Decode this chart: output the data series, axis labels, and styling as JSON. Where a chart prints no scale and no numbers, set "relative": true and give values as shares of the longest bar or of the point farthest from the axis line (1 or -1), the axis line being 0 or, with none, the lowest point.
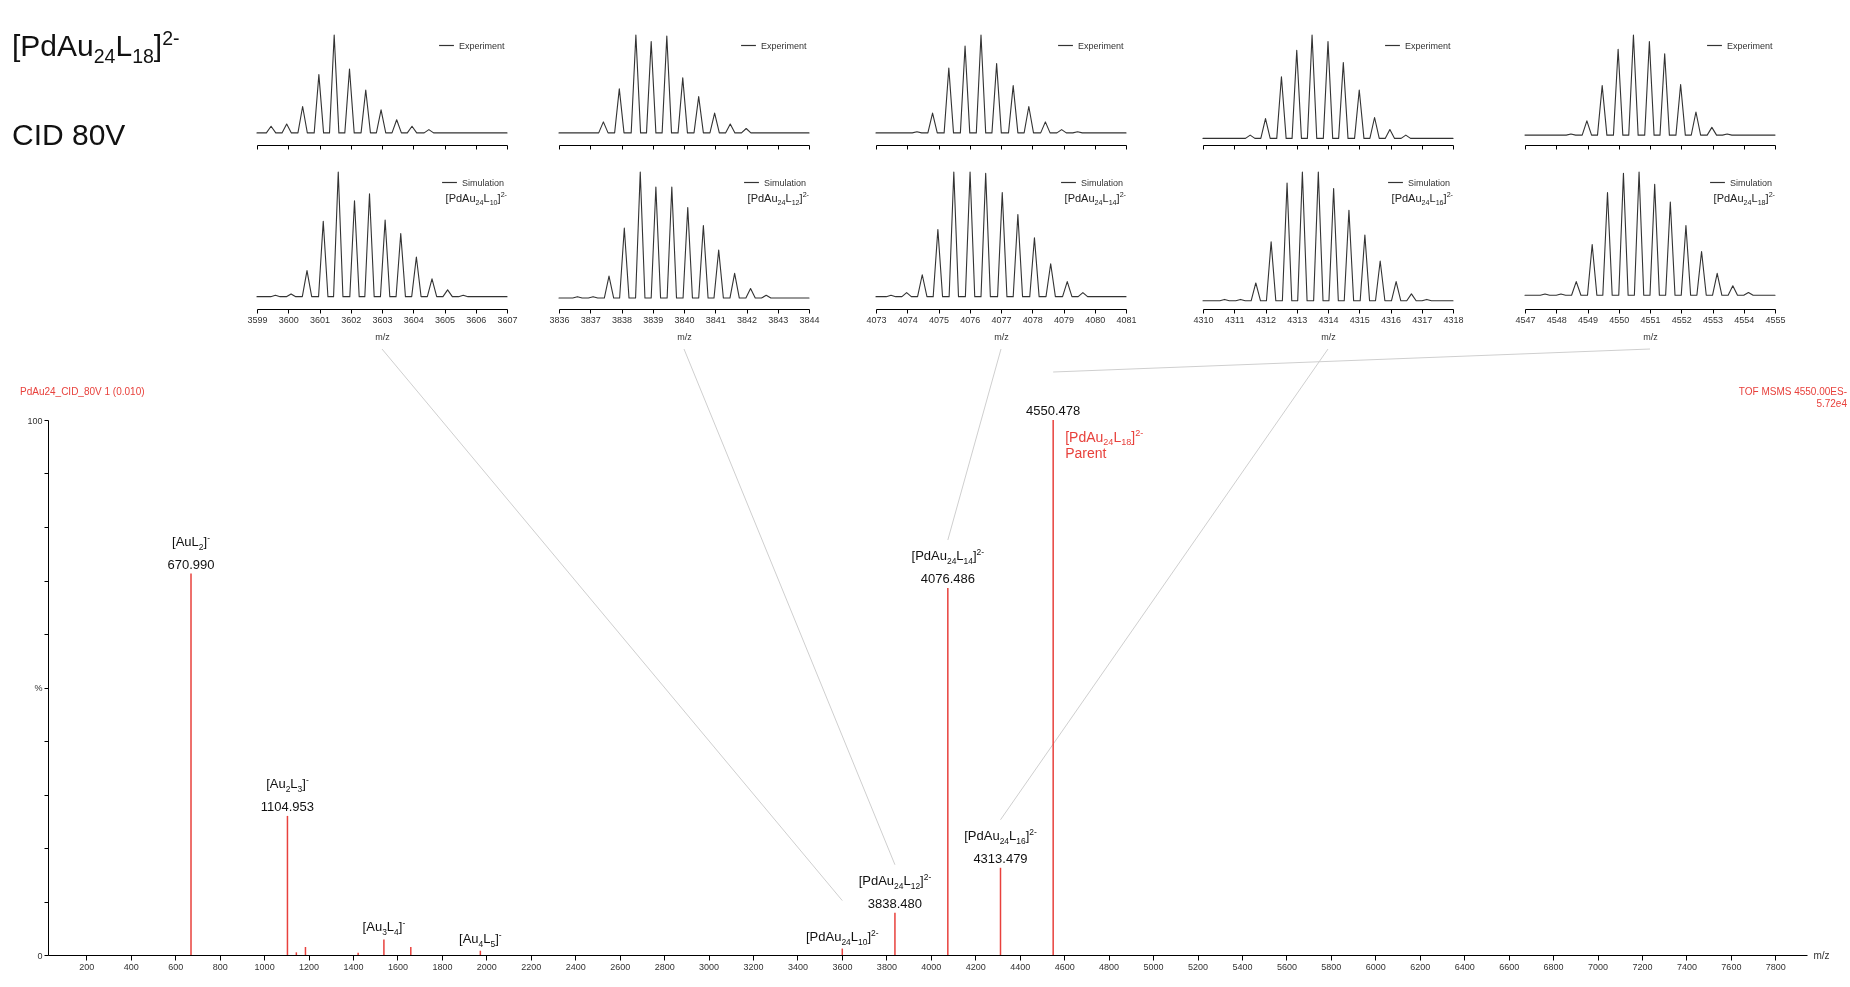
{
  "chart_data": [
    {
      "type": "line",
      "title": "[PdAu$_{24}$L$_{18}$]$^{2-}$",
      "subtitle": "CID 80V",
      "relative": true,
      "xlim": [
        3599,
        3607
      ],
      "xticks": [
        3599,
        3600,
        3601,
        3602,
        3603,
        3604,
        3605,
        3606,
        3607
      ],
      "tick_labels": false,
      "legend": "top right",
      "series": [
        {
          "name": "Experiment",
          "color": "#333333",
          "x": [
            3599,
            3599.3,
            3599.45,
            3599.6,
            3599.8,
            3599.95,
            3600.1,
            3600.31,
            3600.46,
            3600.61,
            3600.83,
            3600.98,
            3601.13,
            3601.32,
            3601.47,
            3601.62,
            3601.81,
            3601.96,
            3602.11,
            3602.33,
            3602.48,
            3602.63,
            3602.82,
            3602.97,
            3603.12,
            3603.32,
            3603.47,
            3603.62,
            3603.81,
            3603.96,
            3604.11,
            3604.35,
            3604.5,
            3604.65,
            3607
          ],
          "values": [
            0.11,
            0.11,
            0.17,
            0.11,
            0.11,
            0.19,
            0.11,
            0.11,
            0.35,
            0.11,
            0.11,
            0.64,
            0.11,
            0.11,
            1,
            0.11,
            0.11,
            0.69,
            0.11,
            0.11,
            0.5,
            0.11,
            0.11,
            0.32,
            0.11,
            0.11,
            0.23,
            0.11,
            0.11,
            0.17,
            0.11,
            0.11,
            0.14,
            0.11,
            0.11
          ]
        }
      ]
    },
    {
      "type": "line",
      "relative": true,
      "xlim": [
        3836,
        3844
      ],
      "xticks": [
        3836,
        3837,
        3838,
        3839,
        3840,
        3841,
        3842,
        3843,
        3844
      ],
      "tick_labels": false,
      "legend": "top right",
      "series": [
        {
          "name": "Experiment",
          "color": "#333333",
          "x": [
            3836,
            3837.27,
            3837.42,
            3837.57,
            3837.78,
            3837.93,
            3838.08,
            3838.31,
            3838.46,
            3838.61,
            3838.8,
            3838.95,
            3839.1,
            3839.3,
            3839.45,
            3839.6,
            3839.81,
            3839.96,
            3840.11,
            3840.32,
            3840.47,
            3840.62,
            3840.83,
            3840.98,
            3841.13,
            3841.33,
            3841.48,
            3841.63,
            3841.84,
            3841.99,
            3842.14,
            3844
          ],
          "values": [
            0.11,
            0.11,
            0.21,
            0.11,
            0.11,
            0.51,
            0.11,
            0.11,
            1,
            0.11,
            0.11,
            0.94,
            0.11,
            0.11,
            0.99,
            0.11,
            0.11,
            0.61,
            0.11,
            0.11,
            0.44,
            0.11,
            0.11,
            0.29,
            0.11,
            0.11,
            0.19,
            0.11,
            0.11,
            0.15,
            0.11,
            0.11
          ]
        }
      ]
    },
    {
      "type": "line",
      "relative": true,
      "xlim": [
        4073,
        4081
      ],
      "xticks": [
        4073,
        4074,
        4075,
        4076,
        4077,
        4078,
        4079,
        4080,
        4081
      ],
      "tick_labels": false,
      "legend": "top right",
      "series": [
        {
          "name": "Experiment",
          "color": "#333333",
          "x": [
            4073,
            4074.16,
            4074.31,
            4074.46,
            4074.66,
            4074.81,
            4074.96,
            4075.18,
            4075.33,
            4075.48,
            4075.7,
            4075.85,
            4076,
            4076.21,
            4076.36,
            4076.51,
            4076.71,
            4076.86,
            4077.01,
            4077.24,
            4077.39,
            4077.54,
            4077.74,
            4077.89,
            4078.04,
            4078.27,
            4078.42,
            4078.57,
            4078.79,
            4078.94,
            4079.09,
            4079.3,
            4079.45,
            4079.6,
            4081
          ],
          "values": [
            0.11,
            0.11,
            0.12,
            0.11,
            0.11,
            0.29,
            0.11,
            0.11,
            0.7,
            0.11,
            0.11,
            0.9,
            0.11,
            0.11,
            1,
            0.11,
            0.11,
            0.74,
            0.11,
            0.11,
            0.54,
            0.11,
            0.11,
            0.35,
            0.11,
            0.11,
            0.21,
            0.11,
            0.11,
            0.14,
            0.11,
            0.11,
            0.12,
            0.11,
            0.11
          ]
        }
      ]
    },
    {
      "type": "line",
      "relative": true,
      "xlim": [
        4310,
        4318
      ],
      "xticks": [
        4310,
        4311,
        4312,
        4313,
        4314,
        4315,
        4316,
        4317,
        4318
      ],
      "tick_labels": false,
      "legend": "top right",
      "series": [
        {
          "name": "Experiment",
          "color": "#333333",
          "x": [
            4310,
            4311.36,
            4311.51,
            4311.66,
            4311.85,
            4312,
            4312.15,
            4312.36,
            4312.51,
            4312.66,
            4312.85,
            4313,
            4313.15,
            4313.34,
            4313.49,
            4313.64,
            4313.85,
            4314,
            4314.15,
            4314.34,
            4314.49,
            4314.64,
            4314.85,
            4315,
            4315.15,
            4315.34,
            4315.49,
            4315.64,
            4315.83,
            4315.98,
            4316.13,
            4316.34,
            4316.49,
            4316.64,
            4318
          ],
          "values": [
            0.06,
            0.06,
            0.09,
            0.06,
            0.06,
            0.24,
            0.06,
            0.06,
            0.62,
            0.06,
            0.06,
            0.86,
            0.06,
            0.06,
            1,
            0.06,
            0.06,
            0.94,
            0.06,
            0.06,
            0.75,
            0.06,
            0.06,
            0.5,
            0.06,
            0.06,
            0.25,
            0.06,
            0.06,
            0.14,
            0.06,
            0.06,
            0.09,
            0.06,
            0.06
          ]
        }
      ]
    },
    {
      "type": "line",
      "relative": true,
      "xlim": [
        4547,
        4555
      ],
      "xticks": [
        4547,
        4548,
        4549,
        4550,
        4551,
        4552,
        4553,
        4554,
        4555
      ],
      "tick_labels": false,
      "legend": "top right",
      "series": [
        {
          "name": "Experiment",
          "color": "#333333",
          "x": [
            4547,
            4548.32,
            4548.47,
            4548.62,
            4548.83,
            4548.98,
            4549.13,
            4549.32,
            4549.47,
            4549.62,
            4549.83,
            4549.98,
            4550.13,
            4550.32,
            4550.47,
            4550.62,
            4550.83,
            4550.98,
            4551.13,
            4551.32,
            4551.47,
            4551.62,
            4551.83,
            4551.98,
            4552.13,
            4552.32,
            4552.47,
            4552.62,
            4552.83,
            4552.98,
            4553.13,
            4553.32,
            4553.47,
            4553.62,
            4555
          ],
          "values": [
            0.09,
            0.09,
            0.1,
            0.09,
            0.09,
            0.22,
            0.09,
            0.09,
            0.54,
            0.09,
            0.09,
            0.87,
            0.09,
            0.09,
            1,
            0.09,
            0.09,
            0.94,
            0.09,
            0.09,
            0.83,
            0.09,
            0.09,
            0.55,
            0.09,
            0.09,
            0.3,
            0.09,
            0.09,
            0.16,
            0.09,
            0.09,
            0.1,
            0.09,
            0.09
          ]
        }
      ]
    },
    {
      "type": "line",
      "relative": true,
      "xlabel": "m/z",
      "xlim": [
        3599,
        3607
      ],
      "xticks": [
        3599,
        3600,
        3601,
        3602,
        3603,
        3604,
        3605,
        3606,
        3607
      ],
      "tick_labels": "x",
      "legend": "top right",
      "annotations": [
        "[PdAu$_{24}$L$_{10}$]$^{2-}$"
      ],
      "series": [
        {
          "name": "Simulation",
          "color": "#333333",
          "x": [
            3599,
            3599.44,
            3599.59,
            3599.74,
            3599.94,
            3600.09,
            3600.24,
            3600.45,
            3600.6,
            3600.75,
            3600.97,
            3601.12,
            3601.27,
            3601.45,
            3601.6,
            3601.75,
            3601.97,
            3602.12,
            3602.27,
            3602.45,
            3602.6,
            3602.75,
            3602.95,
            3603.1,
            3603.25,
            3603.45,
            3603.6,
            3603.75,
            3603.95,
            3604.1,
            3604.25,
            3604.45,
            3604.6,
            3604.75,
            3604.95,
            3605.1,
            3605.25,
            3605.45,
            3605.6,
            3605.75,
            3607
          ],
          "values": [
            0.09,
            0.09,
            0.1,
            0.09,
            0.09,
            0.11,
            0.09,
            0.09,
            0.28,
            0.09,
            0.09,
            0.64,
            0.09,
            0.09,
            1,
            0.09,
            0.09,
            0.79,
            0.09,
            0.09,
            0.84,
            0.09,
            0.09,
            0.65,
            0.09,
            0.09,
            0.55,
            0.09,
            0.09,
            0.38,
            0.09,
            0.09,
            0.22,
            0.09,
            0.09,
            0.14,
            0.09,
            0.09,
            0.1,
            0.09,
            0.09
          ]
        }
      ]
    },
    {
      "type": "line",
      "relative": true,
      "xlabel": "m/z",
      "xlim": [
        3836,
        3844
      ],
      "xticks": [
        3836,
        3837,
        3838,
        3839,
        3840,
        3841,
        3842,
        3843,
        3844
      ],
      "tick_labels": "x",
      "legend": "top right",
      "annotations": [
        "[PdAu$_{24}$L$_{12}$]$^{2-}$"
      ],
      "series": [
        {
          "name": "Simulation",
          "color": "#333333",
          "x": [
            3836,
            3836.44,
            3836.59,
            3836.74,
            3836.94,
            3837.09,
            3837.24,
            3837.45,
            3837.6,
            3837.75,
            3837.94,
            3838.09,
            3838.24,
            3838.45,
            3838.6,
            3838.75,
            3838.95,
            3839.1,
            3839.25,
            3839.46,
            3839.61,
            3839.76,
            3839.97,
            3840.12,
            3840.27,
            3840.47,
            3840.62,
            3840.77,
            3840.96,
            3841.11,
            3841.26,
            3841.47,
            3841.62,
            3841.77,
            3841.98,
            3842.13,
            3842.28,
            3842.48,
            3842.63,
            3842.78,
            3844
          ],
          "values": [
            0.08,
            0.08,
            0.09,
            0.08,
            0.08,
            0.09,
            0.08,
            0.08,
            0.24,
            0.08,
            0.08,
            0.59,
            0.08,
            0.08,
            1,
            0.08,
            0.08,
            0.89,
            0.08,
            0.08,
            0.89,
            0.08,
            0.08,
            0.74,
            0.08,
            0.08,
            0.61,
            0.08,
            0.08,
            0.43,
            0.08,
            0.08,
            0.26,
            0.08,
            0.08,
            0.15,
            0.08,
            0.08,
            0.1,
            0.08,
            0.08
          ]
        }
      ]
    },
    {
      "type": "line",
      "relative": true,
      "xlabel": "m/z",
      "xlim": [
        4073,
        4081
      ],
      "xticks": [
        4073,
        4074,
        4075,
        4076,
        4077,
        4078,
        4079,
        4080,
        4081
      ],
      "tick_labels": "x",
      "legend": "top right",
      "annotations": [
        "[PdAu$_{24}$L$_{14}$]$^{2-}$"
      ],
      "series": [
        {
          "name": "Simulation",
          "color": "#333333",
          "x": [
            4073,
            4073.33,
            4073.48,
            4073.63,
            4073.83,
            4073.98,
            4074.13,
            4074.33,
            4074.48,
            4074.63,
            4074.83,
            4074.98,
            4075.13,
            4075.34,
            4075.49,
            4075.64,
            4075.86,
            4076.01,
            4076.16,
            4076.36,
            4076.51,
            4076.66,
            4076.89,
            4077.04,
            4077.19,
            4077.39,
            4077.54,
            4077.69,
            4077.92,
            4078.07,
            4078.22,
            4078.44,
            4078.59,
            4078.74,
            4078.97,
            4079.12,
            4079.27,
            4079.47,
            4079.62,
            4079.77,
            4081
          ],
          "values": [
            0.09,
            0.09,
            0.1,
            0.09,
            0.09,
            0.12,
            0.09,
            0.09,
            0.25,
            0.09,
            0.09,
            0.58,
            0.09,
            0.09,
            1,
            0.09,
            0.09,
            1,
            0.09,
            0.09,
            0.99,
            0.09,
            0.09,
            0.85,
            0.09,
            0.09,
            0.69,
            0.09,
            0.09,
            0.52,
            0.09,
            0.09,
            0.33,
            0.09,
            0.09,
            0.2,
            0.09,
            0.09,
            0.12,
            0.09,
            0.09
          ]
        }
      ]
    },
    {
      "type": "line",
      "relative": true,
      "xlabel": "m/z",
      "xlim": [
        4310,
        4318
      ],
      "xticks": [
        4310,
        4311,
        4312,
        4313,
        4314,
        4315,
        4316,
        4317,
        4318
      ],
      "tick_labels": "x",
      "legend": "top right",
      "annotations": [
        "[PdAu$_{24}$L$_{16}$]$^{2-}$"
      ],
      "series": [
        {
          "name": "Simulation",
          "color": "#333333",
          "x": [
            4310,
            4310.54,
            4310.69,
            4310.84,
            4311.05,
            4311.2,
            4311.35,
            4311.54,
            4311.69,
            4311.84,
            4312.03,
            4312.18,
            4312.33,
            4312.54,
            4312.69,
            4312.84,
            4313.03,
            4313.18,
            4313.33,
            4313.54,
            4313.69,
            4313.84,
            4314.03,
            4314.18,
            4314.33,
            4314.52,
            4314.67,
            4314.82,
            4315.03,
            4315.18,
            4315.33,
            4315.52,
            4315.67,
            4315.82,
            4316.03,
            4316.18,
            4316.33,
            4316.52,
            4316.67,
            4316.82,
            4317.01,
            4317.16,
            4317.31,
            4318
          ],
          "values": [
            0.06,
            0.06,
            0.07,
            0.06,
            0.06,
            0.07,
            0.06,
            0.06,
            0.19,
            0.06,
            0.06,
            0.49,
            0.06,
            0.06,
            0.92,
            0.06,
            0.06,
            1,
            0.06,
            0.06,
            1,
            0.06,
            0.06,
            0.88,
            0.06,
            0.06,
            0.72,
            0.06,
            0.06,
            0.54,
            0.06,
            0.06,
            0.35,
            0.06,
            0.06,
            0.2,
            0.06,
            0.06,
            0.11,
            0.06,
            0.06,
            0.07,
            0.06,
            0.06
          ]
        }
      ]
    },
    {
      "type": "line",
      "relative": true,
      "xlabel": "m/z",
      "xlim": [
        4547,
        4555
      ],
      "xticks": [
        4547,
        4548,
        4549,
        4550,
        4551,
        4552,
        4553,
        4554,
        4555
      ],
      "tick_labels": "x",
      "legend": "top right",
      "annotations": [
        "[PdAu$_{24}$L$_{18}$]$^{2-}$"
      ],
      "series": [
        {
          "name": "Simulation",
          "color": "#333333",
          "x": [
            4547,
            4547.49,
            4547.64,
            4547.79,
            4548,
            4548.15,
            4548.3,
            4548.49,
            4548.64,
            4548.79,
            4549,
            4549.15,
            4549.3,
            4549.49,
            4549.64,
            4549.79,
            4550,
            4550.15,
            4550.3,
            4550.5,
            4550.65,
            4550.8,
            4551,
            4551.15,
            4551.3,
            4551.5,
            4551.65,
            4551.8,
            4552,
            4552.15,
            4552.3,
            4552.5,
            4552.65,
            4552.8,
            4553,
            4553.15,
            4553.3,
            4553.5,
            4553.65,
            4553.8,
            4554,
            4554.15,
            4554.3,
            4555
          ],
          "values": [
            0.1,
            0.1,
            0.11,
            0.1,
            0.1,
            0.11,
            0.1,
            0.1,
            0.2,
            0.1,
            0.1,
            0.47,
            0.1,
            0.1,
            0.85,
            0.1,
            0.1,
            0.99,
            0.1,
            0.1,
            1,
            0.1,
            0.1,
            0.91,
            0.1,
            0.1,
            0.78,
            0.1,
            0.1,
            0.61,
            0.1,
            0.1,
            0.42,
            0.1,
            0.1,
            0.26,
            0.1,
            0.1,
            0.17,
            0.1,
            0.1,
            0.12,
            0.1,
            0.1
          ]
        }
      ]
    },
    {
      "type": "bar",
      "xlabel": "m/z",
      "color": "#e8413c",
      "x": [
        670.99,
        1104.953,
        1145,
        1186,
        1423,
        1539,
        1660,
        1973,
        3601.6,
        3838.48,
        4076.486,
        4313.479,
        4550.478
      ],
      "values": [
        71.3,
        26.0,
        0.5,
        1.5,
        0.4,
        2.9,
        1.5,
        0.8,
        1.2,
        7.9,
        68.6,
        16.3,
        100
      ],
      "xlim": [
        50,
        7920
      ],
      "xticks": [
        200,
        400,
        600,
        800,
        1000,
        1200,
        1400,
        1600,
        1800,
        2000,
        2200,
        2400,
        2600,
        2800,
        3000,
        3200,
        3400,
        3600,
        3800,
        4000,
        4200,
        4400,
        4600,
        4800,
        5000,
        5200,
        5400,
        5600,
        5800,
        6000,
        6200,
        6400,
        6600,
        6800,
        7000,
        7200,
        7400,
        7600,
        7800
      ],
      "ylim": [
        0,
        100
      ],
      "yticks": [
        0,
        {
          "value": 10,
          "label": null
        },
        {
          "value": 20,
          "label": null
        },
        {
          "value": 30,
          "label": null
        },
        {
          "value": 40,
          "label": null
        },
        {
          "value": 50,
          "label": "%"
        },
        {
          "value": 60,
          "label": null
        },
        {
          "value": 70,
          "label": null
        },
        {
          "value": 80,
          "label": null
        },
        {
          "value": 90,
          "label": null
        },
        100
      ],
      "annotations": [
        "PdAu24_CID_80V 1 (0.010)",
        "TOF MSMS 4550.00ES-",
        "5.72e4",
        {
          "text": "670.990",
          "x": 670.99,
          "y": 71.3
        },
        {
          "text": "[AuL$_{2}$]$^{-}$",
          "x": 670.99,
          "y": 71.3
        },
        {
          "text": "1104.953",
          "x": 1104.953,
          "y": 26.0
        },
        {
          "text": "[Au$_{2}$L$_{3}$]$^{-}$",
          "x": 1104.953,
          "y": 26.0
        },
        {
          "text": "[Au$_{3}$L$_{4}$]$^{-}$",
          "x": 1539,
          "y": 2.9
        },
        {
          "text": "[Au$_{4}$L$_{5}$]$^{-}$",
          "x": 1973,
          "y": 0.8
        },
        {
          "text": "[PdAu$_{24}$L$_{10}$]$^{2-}$",
          "x": 3601.6,
          "y": 1.2
        },
        {
          "text": "3838.480",
          "x": 3838.48,
          "y": 7.9
        },
        {
          "text": "[PdAu$_{24}$L$_{12}$]$^{2-}$",
          "x": 3838.48,
          "y": 7.9
        },
        {
          "text": "4076.486",
          "x": 4076.486,
          "y": 68.6
        },
        {
          "text": "[PdAu$_{24}$L$_{14}$]$^{2-}$",
          "x": 4076.486,
          "y": 68.6
        },
        {
          "text": "4313.479",
          "x": 4313.479,
          "y": 16.3
        },
        {
          "text": "[PdAu$_{24}$L$_{16}$]$^{2-}$",
          "x": 4313.479,
          "y": 16.3
        },
        {
          "text": "4550.478",
          "x": 4550.478,
          "y": 100
        },
        "[PdAu$_{24}$L$_{18}$]$^{2-}$",
        "Parent"
      ]
    }
  ]
}
